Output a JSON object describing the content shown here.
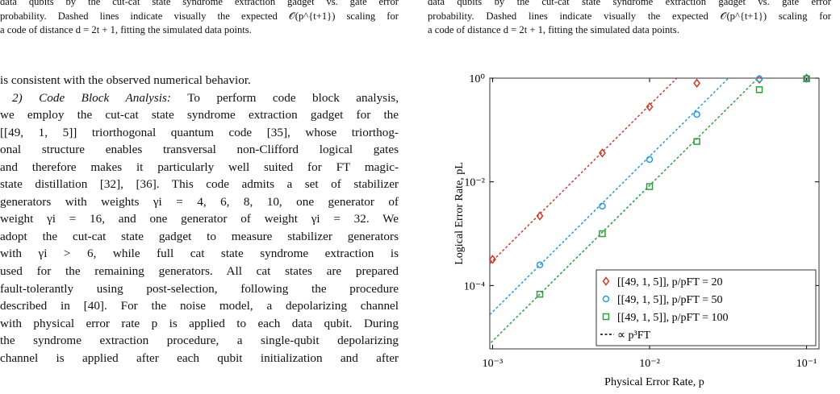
{
  "left_caption": {
    "lines": [
      "data qubits by the cut-cat state syndrome extraction gadget vs. gate error",
      "probability. Dashed lines indicate visually the expected 𝒪(p^{t+1}) scaling for",
      "a code of distance d = 2t + 1, fitting the simulated data points."
    ]
  },
  "right_caption": {
    "lines": [
      "data qubits by the cut-cat state syndrome extraction gadget vs. gate error",
      "probability. Dashed lines indicate visually the expected 𝒪(p^{t+1}) scaling for",
      "a code of distance d = 2t + 1, fitting the simulated data points."
    ]
  },
  "body": {
    "first_line": "is consistent with the observed numerical behavior.",
    "section_heading": "2) Code Block Analysis:",
    "section_lead": "To perform code block analysis,",
    "lines": [
      "we employ the cut-cat state syndrome extraction gadget for the",
      "[[49, 1, 5]] triorthogonal quantum code [35], whose triorthog-",
      "onal structure enables transversal non-Clifford logical gates",
      "and therefore makes it particularly well suited for FT magic-",
      "state distillation [32], [36]. This code admits a set of stabilizer",
      "generators with weights γi = 4, 6, 8, 10, one generator of",
      "weight γi = 16, and one generator of weight γi = 32. We",
      "adopt the cut-cat state gadget to measure stabilizer generators",
      "with γi > 6, while full cat state syndrome extraction is",
      "used for the remaining generators. All cat states are prepared",
      "fault-tolerantly using post-selection, following the procedure",
      "described in [40]. For the noise model, a depolarizing channel",
      "with physical error rate p is applied to each data qubit. During",
      "the syndrome extraction procedure, a single-qubit depolarizing",
      "channel is applied after each qubit initialization and after"
    ]
  },
  "chart_data": {
    "type": "scatter",
    "x_label": "Physical Error Rate, p",
    "y_label": "Logical Error Rate, pL",
    "xlog": true,
    "ylog": true,
    "xlim": [
      0.00096,
      0.12
    ],
    "ylim": [
      6e-06,
      1
    ],
    "xticks": [
      {
        "value": 0.001,
        "label": "10⁻³"
      },
      {
        "value": 0.01,
        "label": "10⁻²"
      },
      {
        "value": 0.1,
        "label": "10⁻¹"
      }
    ],
    "yticks": [
      {
        "value": 0.0001,
        "label": "10⁻⁴"
      },
      {
        "value": 0.01,
        "label": "10⁻²"
      },
      {
        "value": 1,
        "label": "10⁰"
      }
    ],
    "legend": "lower right",
    "fit_legend": "∝ p³FT",
    "x": [
      0.001,
      0.002,
      0.005,
      0.01,
      0.02,
      0.05,
      0.1
    ],
    "series": [
      {
        "name": "[[49, 1, 5]],  p/pFT = 20",
        "color": "#d03a2a",
        "marker": "diamond",
        "values": [
          0.00032,
          0.0022,
          0.036,
          0.28,
          0.8,
          0.95,
          1
        ],
        "fit_x": [
          0.00096,
          0.0149
        ],
        "fit_values": [
          0.000265,
          1
        ]
      },
      {
        "name": "[[49, 1, 5]],  p/pFT = 50",
        "color": "#2b9ad6",
        "marker": "circle",
        "values": [
          null,
          0.00025,
          0.0034,
          0.027,
          0.2,
          0.97,
          1
        ],
        "fit_x": [
          0.00096,
          0.0318
        ],
        "fit_values": [
          2.74e-05,
          1
        ]
      },
      {
        "name": "[[49, 1, 5]],  p/pFT = 100",
        "color": "#2e9e3e",
        "marker": "square",
        "values": [
          null,
          6.8e-05,
          0.001,
          0.0081,
          0.06,
          0.6,
          0.97
        ],
        "fit_x": [
          0.00089,
          0.049
        ],
        "fit_values": [
          6e-06,
          1
        ]
      }
    ]
  }
}
